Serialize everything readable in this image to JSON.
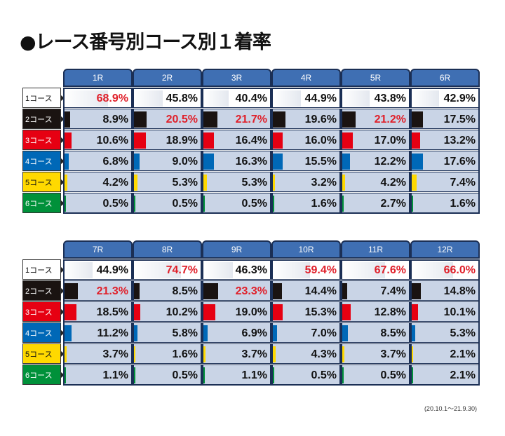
{
  "title": "●レース番号別コース別１着率",
  "note": "(20.10.1～21.9.30)",
  "colors": {
    "header_bg": "#3f6fb3",
    "cell_bg": "#c9d4e6",
    "highlight_text": "#e0202a",
    "course_colors": [
      "#ffffff",
      "#1a1311",
      "#e60012",
      "#0068b7",
      "#ffd900",
      "#00913a"
    ]
  },
  "chart_data": {
    "type": "table",
    "courses": [
      "1コース",
      "2コース",
      "3コース",
      "4コース",
      "5コース",
      "6コース"
    ],
    "races": [
      "1R",
      "2R",
      "3R",
      "4R",
      "5R",
      "6R",
      "7R",
      "8R",
      "9R",
      "10R",
      "11R",
      "12R"
    ],
    "values_percent": [
      [
        68.9,
        8.9,
        10.6,
        6.8,
        4.2,
        0.5
      ],
      [
        45.8,
        20.5,
        18.9,
        9.0,
        5.3,
        0.5
      ],
      [
        40.4,
        21.7,
        16.4,
        16.3,
        5.3,
        0.5
      ],
      [
        44.9,
        19.6,
        16.0,
        15.5,
        3.2,
        1.6
      ],
      [
        43.8,
        21.2,
        17.0,
        12.2,
        4.2,
        2.7
      ],
      [
        42.9,
        17.5,
        13.2,
        17.6,
        7.4,
        1.6
      ],
      [
        44.9,
        21.3,
        18.5,
        11.2,
        3.7,
        1.1
      ],
      [
        74.7,
        8.5,
        10.2,
        5.8,
        1.6,
        0.5
      ],
      [
        46.3,
        23.3,
        19.0,
        6.9,
        3.7,
        1.1
      ],
      [
        59.4,
        14.4,
        15.3,
        7.0,
        4.3,
        0.5
      ],
      [
        67.6,
        7.4,
        12.8,
        8.5,
        3.7,
        0.5
      ],
      [
        66.0,
        14.8,
        10.1,
        5.3,
        2.1,
        2.1
      ]
    ],
    "labels": [
      [
        "68.9%",
        "8.9%",
        "10.6%",
        "6.8%",
        "4.2%",
        "0.5%"
      ],
      [
        "45.8%",
        "20.5%",
        "18.9%",
        "9.0%",
        "5.3%",
        "0.5%"
      ],
      [
        "40.4%",
        "21.7%",
        "16.4%",
        "16.3%",
        "5.3%",
        "0.5%"
      ],
      [
        "44.9%",
        "19.6%",
        "16.0%",
        "15.5%",
        "3.2%",
        "1.6%"
      ],
      [
        "43.8%",
        "21.2%",
        "17.0%",
        "12.2%",
        "4.2%",
        "2.7%"
      ],
      [
        "42.9%",
        "17.5%",
        "13.2%",
        "17.6%",
        "7.4%",
        "1.6%"
      ],
      [
        "44.9%",
        "21.3%",
        "18.5%",
        "11.2%",
        "3.7%",
        "1.1%"
      ],
      [
        "74.7%",
        "8.5%",
        "10.2%",
        "5.8%",
        "1.6%",
        "0.5%"
      ],
      [
        "46.3%",
        "23.3%",
        "19.0%",
        "6.9%",
        "3.7%",
        "1.1%"
      ],
      [
        "59.4%",
        "14.4%",
        "15.3%",
        "7.0%",
        "4.3%",
        "0.5%"
      ],
      [
        "67.6%",
        "7.4%",
        "12.8%",
        "8.5%",
        "3.7%",
        "0.5%"
      ],
      [
        "66.0%",
        "14.8%",
        "10.1%",
        "5.3%",
        "2.1%",
        "2.1%"
      ]
    ],
    "highlighted": [
      [
        true,
        false,
        false,
        false,
        false,
        false
      ],
      [
        false,
        true,
        false,
        false,
        false,
        false
      ],
      [
        false,
        true,
        false,
        false,
        false,
        false
      ],
      [
        false,
        false,
        false,
        false,
        false,
        false
      ],
      [
        false,
        true,
        false,
        false,
        false,
        false
      ],
      [
        false,
        false,
        false,
        false,
        false,
        false
      ],
      [
        false,
        true,
        false,
        false,
        false,
        false
      ],
      [
        true,
        false,
        false,
        false,
        false,
        false
      ],
      [
        false,
        true,
        false,
        false,
        false,
        false
      ],
      [
        true,
        false,
        false,
        false,
        false,
        false
      ],
      [
        true,
        false,
        false,
        false,
        false,
        false
      ],
      [
        true,
        false,
        false,
        false,
        false,
        false
      ]
    ]
  }
}
